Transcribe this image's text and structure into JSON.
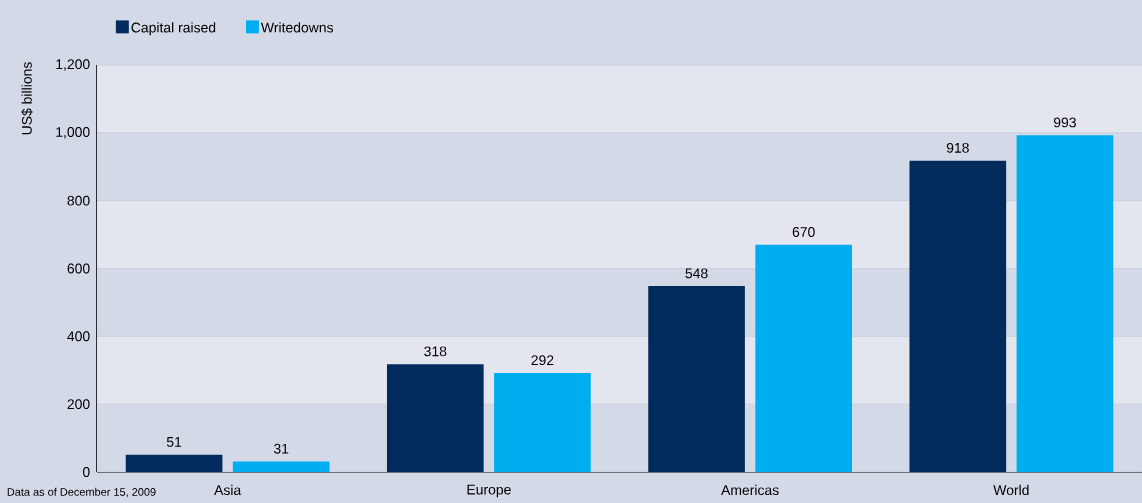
{
  "chart_data": {
    "type": "bar",
    "ylabel": "US$ billions",
    "categories": [
      "Asia",
      "Europe",
      "Americas",
      "World"
    ],
    "series": [
      {
        "name": "Capital raised",
        "color": "#002b5c",
        "values": [
          51,
          318,
          548,
          918
        ]
      },
      {
        "name": "Writedowns",
        "color": "#00aeef",
        "values": [
          31,
          292,
          670,
          993
        ]
      }
    ],
    "ylim": [
      0,
      1200
    ],
    "yticks": [
      0,
      200,
      400,
      600,
      800,
      {
        "value": 1000,
        "label": "1,000"
      },
      {
        "value": 1200,
        "label": "1,200"
      }
    ],
    "grid": "y",
    "legend": "top left",
    "data_labels": true,
    "annotations": [
      "Data as of December 15, 2009"
    ]
  }
}
